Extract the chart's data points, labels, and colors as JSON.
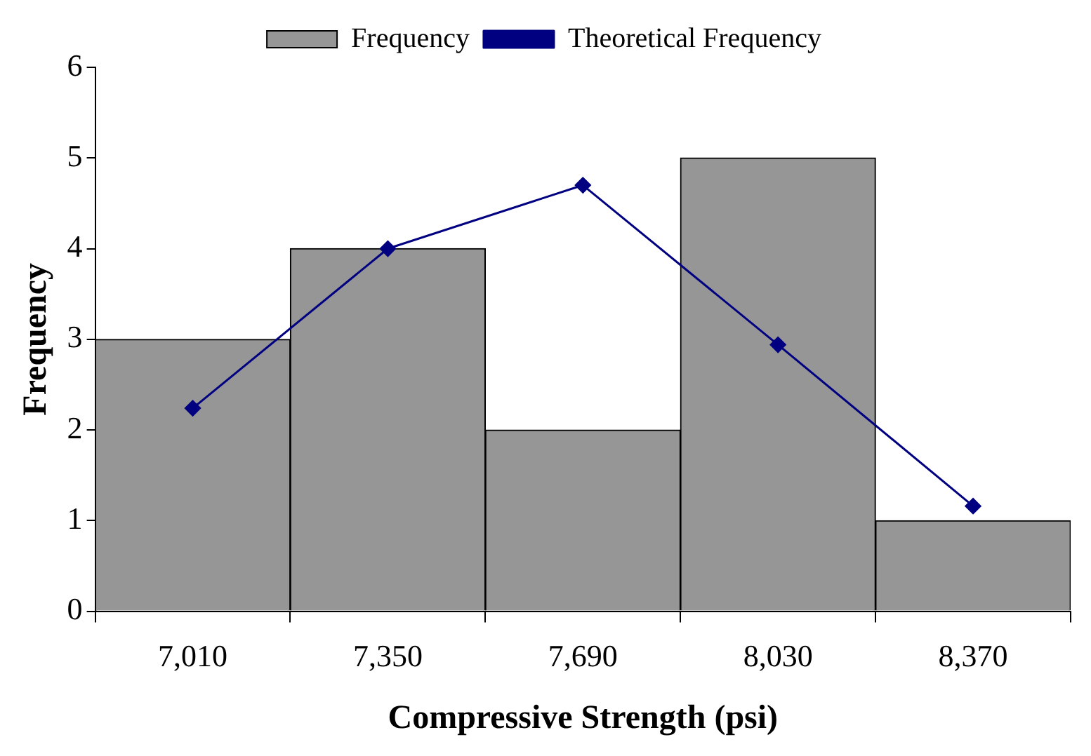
{
  "chart_data": {
    "type": "bar",
    "xlabel": "Compressive Strength (psi)",
    "ylabel": "Frequency",
    "categories": [
      "7,010",
      "7,350",
      "7,690",
      "8,030",
      "8,370"
    ],
    "series": [
      {
        "name": "Frequency",
        "color": "#969696",
        "values": [
          3,
          4,
          2,
          5,
          1
        ]
      },
      {
        "name": "Theoretical Frequency",
        "type": "line",
        "color": "#000080",
        "values": [
          2.24,
          4.0,
          4.7,
          2.94,
          1.16
        ]
      }
    ],
    "ylim": [
      0,
      6
    ],
    "yticks": [
      0,
      1,
      2,
      3,
      4,
      5,
      6
    ],
    "grid": false,
    "legend": "top",
    "marker": "diamond",
    "line_style": "solid"
  }
}
